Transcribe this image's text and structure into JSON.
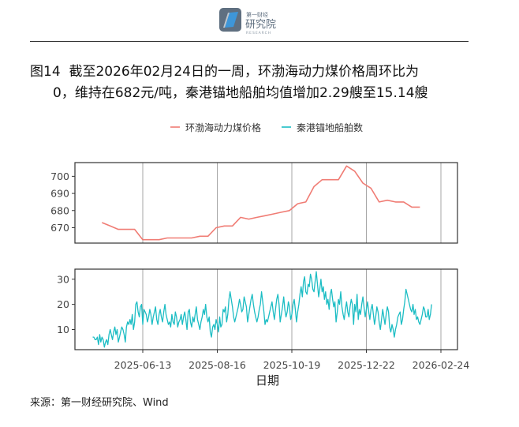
{
  "header": {
    "logo_text_top": "第一财经",
    "logo_text_main": "研究院",
    "logo_text_sub": "RESEARCH"
  },
  "figure": {
    "label": "图14",
    "title_line1": "截至2026年02月24日的一周，环渤海动力煤价格周环比为",
    "title_line2": "0，维持在682元/吨，秦港锚地船舶均值增加2.29艘至15.14艘"
  },
  "source": "来源：第一财经研究院、Wind",
  "colors": {
    "coal": "#F07C74",
    "ships": "#1CBDC4",
    "grid": "#a6a6a6",
    "axis": "#333333"
  },
  "chart_data": {
    "type": "line",
    "xlabel": "日期",
    "x_ticks": [
      "2025-06-13",
      "2025-08-16",
      "2025-10-19",
      "2025-12-22",
      "2026-02-24"
    ],
    "legend_position": "top",
    "panels": [
      {
        "series_name": "环渤海动力煤价格",
        "ylim": [
          661,
          708
        ],
        "y_ticks": [
          670,
          680,
          690,
          700
        ],
        "points": [
          [
            "2025-05-09",
            673
          ],
          [
            "2025-05-16",
            671
          ],
          [
            "2025-05-23",
            669
          ],
          [
            "2025-05-30",
            669
          ],
          [
            "2025-06-06",
            669
          ],
          [
            "2025-06-13",
            663
          ],
          [
            "2025-06-20",
            663
          ],
          [
            "2025-06-27",
            663
          ],
          [
            "2025-07-04",
            664
          ],
          [
            "2025-07-11",
            664
          ],
          [
            "2025-07-18",
            664
          ],
          [
            "2025-07-25",
            664
          ],
          [
            "2025-08-01",
            665
          ],
          [
            "2025-08-08",
            665
          ],
          [
            "2025-08-15",
            670
          ],
          [
            "2025-08-22",
            671
          ],
          [
            "2025-08-29",
            671
          ],
          [
            "2025-09-05",
            676
          ],
          [
            "2025-09-12",
            675
          ],
          [
            "2025-09-19",
            676
          ],
          [
            "2025-09-26",
            677
          ],
          [
            "2025-10-03",
            678
          ],
          [
            "2025-10-10",
            679
          ],
          [
            "2025-10-17",
            680
          ],
          [
            "2025-10-24",
            684
          ],
          [
            "2025-10-31",
            685
          ],
          [
            "2025-11-07",
            694
          ],
          [
            "2025-11-14",
            698
          ],
          [
            "2025-11-21",
            698
          ],
          [
            "2025-11-28",
            698
          ],
          [
            "2025-12-05",
            706
          ],
          [
            "2025-12-12",
            703
          ],
          [
            "2025-12-19",
            696
          ],
          [
            "2025-12-26",
            693
          ],
          [
            "2026-01-02",
            685
          ],
          [
            "2026-01-09",
            686
          ],
          [
            "2026-01-16",
            685
          ],
          [
            "2026-01-23",
            685
          ],
          [
            "2026-01-30",
            682
          ],
          [
            "2026-02-06",
            682
          ]
        ]
      },
      {
        "series_name": "秦港锚地船舶数",
        "ylim": [
          2,
          34
        ],
        "y_ticks": [
          10,
          20,
          30
        ],
        "start": "2025-05-01",
        "step_days": 1,
        "values": [
          7,
          7,
          6,
          6,
          7,
          4,
          8,
          5,
          7,
          6,
          3,
          5,
          6,
          4,
          8,
          10,
          8,
          6,
          9,
          11,
          8,
          10,
          5,
          7,
          9,
          11,
          10,
          8,
          5,
          11,
          13,
          12,
          14,
          12,
          16,
          10,
          13,
          20,
          21,
          17,
          15,
          19,
          20,
          12,
          18,
          17,
          16,
          13,
          15,
          18,
          16,
          12,
          15,
          17,
          19,
          14,
          12,
          16,
          18,
          15,
          13,
          17,
          20,
          16,
          14,
          12,
          13,
          11,
          16,
          13,
          12,
          17,
          15,
          11,
          13,
          14,
          16,
          12,
          15,
          17,
          14,
          10,
          17,
          18,
          13,
          11,
          15,
          13,
          16,
          19,
          14,
          12,
          10,
          13,
          15,
          18,
          16,
          20,
          15,
          13,
          15,
          9,
          7,
          11,
          12,
          10,
          14,
          12,
          9,
          15,
          11,
          12,
          18,
          17,
          19,
          13,
          16,
          22,
          25,
          22,
          19,
          15,
          13,
          15,
          17,
          19,
          22,
          20,
          17,
          18,
          23,
          21,
          19,
          13,
          16,
          19,
          22,
          24,
          20,
          17,
          15,
          13,
          15,
          18,
          20,
          25,
          21,
          17,
          12,
          14,
          13,
          15,
          17,
          19,
          21,
          17,
          14,
          18,
          22,
          24,
          20,
          13,
          16,
          19,
          23,
          18,
          15,
          17,
          21,
          19,
          14,
          16,
          20,
          22,
          18,
          13,
          17,
          20,
          24,
          27,
          23,
          29,
          31,
          25,
          24,
          28,
          27,
          32,
          30,
          26,
          25,
          29,
          33,
          28,
          23,
          26,
          30,
          25,
          27,
          22,
          25,
          20,
          22,
          18,
          24,
          26,
          22,
          19,
          21,
          13,
          17,
          22,
          20,
          25,
          19,
          16,
          14,
          18,
          21,
          17,
          15,
          19,
          22,
          20,
          12,
          20,
          17,
          24,
          14,
          18,
          16,
          20,
          23,
          19,
          15,
          18,
          21,
          17,
          14,
          18,
          20,
          16,
          12,
          15,
          19,
          17,
          13,
          10,
          14,
          18,
          15,
          12,
          16,
          19,
          17,
          11,
          9,
          12,
          10,
          7,
          10,
          12,
          15,
          16,
          17,
          12,
          14,
          18,
          21,
          26,
          24,
          22,
          20,
          18,
          17,
          20,
          16,
          18,
          14,
          15,
          13,
          12,
          14,
          16,
          19,
          18,
          15,
          15,
          18,
          14,
          16,
          20
        ]
      }
    ]
  }
}
